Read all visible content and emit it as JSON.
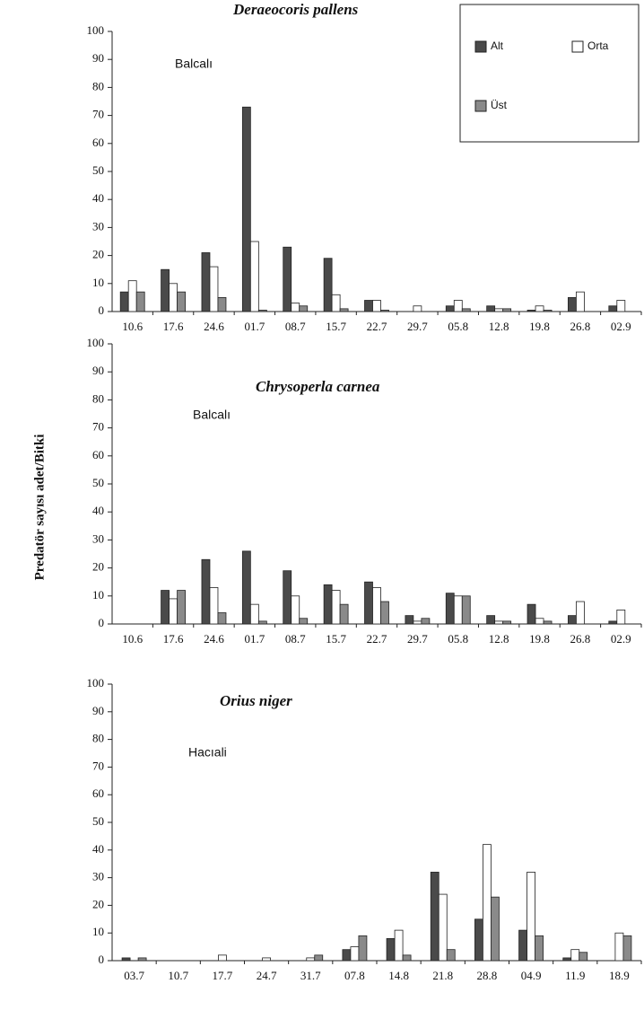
{
  "ylabel": "Predatör sayısı adet/Bitki",
  "chart_data": [
    {
      "type": "bar",
      "title": "Deraeocoris pallens",
      "subtitle": "Balcalı",
      "categories": [
        "10.6",
        "17.6",
        "24.6",
        "01.7",
        "08.7",
        "15.7",
        "22.7",
        "29.7",
        "05.8",
        "12.8",
        "19.8",
        "26.8",
        "02.9"
      ],
      "series": [
        {
          "name": "Alt",
          "color": "#4a4a4a",
          "values": [
            7,
            15,
            21,
            73,
            23,
            19,
            4,
            0,
            2,
            2,
            0.5,
            5,
            2
          ]
        },
        {
          "name": "Orta",
          "color": "#ffffff",
          "values": [
            11,
            10,
            16,
            25,
            3,
            6,
            4,
            2,
            4,
            1,
            2,
            7,
            4
          ]
        },
        {
          "name": "Üst",
          "color": "#8a8a8a",
          "values": [
            7,
            7,
            5,
            0.5,
            2,
            1,
            0.5,
            0,
            1,
            1,
            0.5,
            0,
            0
          ]
        }
      ],
      "legend": "upper right",
      "ylim": [
        0,
        100
      ],
      "yticks": [
        0,
        10,
        20,
        30,
        40,
        50,
        60,
        70,
        80,
        90,
        100
      ]
    },
    {
      "type": "bar",
      "title": "Chrysoperla carnea",
      "subtitle": "Balcalı",
      "categories": [
        "10.6",
        "17.6",
        "24.6",
        "01.7",
        "08.7",
        "15.7",
        "22.7",
        "29.7",
        "05.8",
        "12.8",
        "19.8",
        "26.8",
        "02.9"
      ],
      "series": [
        {
          "color": "#4a4a4a",
          "values": [
            0,
            12,
            23,
            26,
            19,
            14,
            15,
            3,
            11,
            3,
            7,
            3,
            1
          ]
        },
        {
          "color": "#ffffff",
          "values": [
            0,
            9,
            13,
            7,
            10,
            12,
            13,
            1,
            10,
            1,
            2,
            8,
            5
          ]
        },
        {
          "color": "#8a8a8a",
          "values": [
            0,
            12,
            4,
            1,
            2,
            7,
            8,
            2,
            10,
            1,
            1,
            0,
            0
          ]
        }
      ],
      "ylim": [
        0,
        100
      ],
      "yticks": [
        0,
        10,
        20,
        30,
        40,
        50,
        60,
        70,
        80,
        90,
        100
      ]
    },
    {
      "type": "bar",
      "title": "Orius niger",
      "subtitle": "Hacıali",
      "categories": [
        "03.7",
        "10.7",
        "17.7",
        "24.7",
        "31.7",
        "07.8",
        "14.8",
        "21.8",
        "28.8",
        "04.9",
        "11.9",
        "18.9"
      ],
      "series": [
        {
          "color": "#4a4a4a",
          "values": [
            1,
            0,
            0,
            0,
            0,
            4,
            8,
            32,
            15,
            11,
            1,
            0
          ]
        },
        {
          "color": "#ffffff",
          "values": [
            0,
            0,
            2,
            1,
            1,
            5,
            11,
            24,
            42,
            32,
            4,
            10
          ]
        },
        {
          "color": "#8a8a8a",
          "values": [
            1,
            0,
            0,
            0,
            2,
            9,
            2,
            4,
            23,
            9,
            3,
            9
          ]
        }
      ],
      "ylim": [
        0,
        100
      ],
      "yticks": [
        0,
        10,
        20,
        30,
        40,
        50,
        60,
        70,
        80,
        90,
        100
      ]
    }
  ]
}
